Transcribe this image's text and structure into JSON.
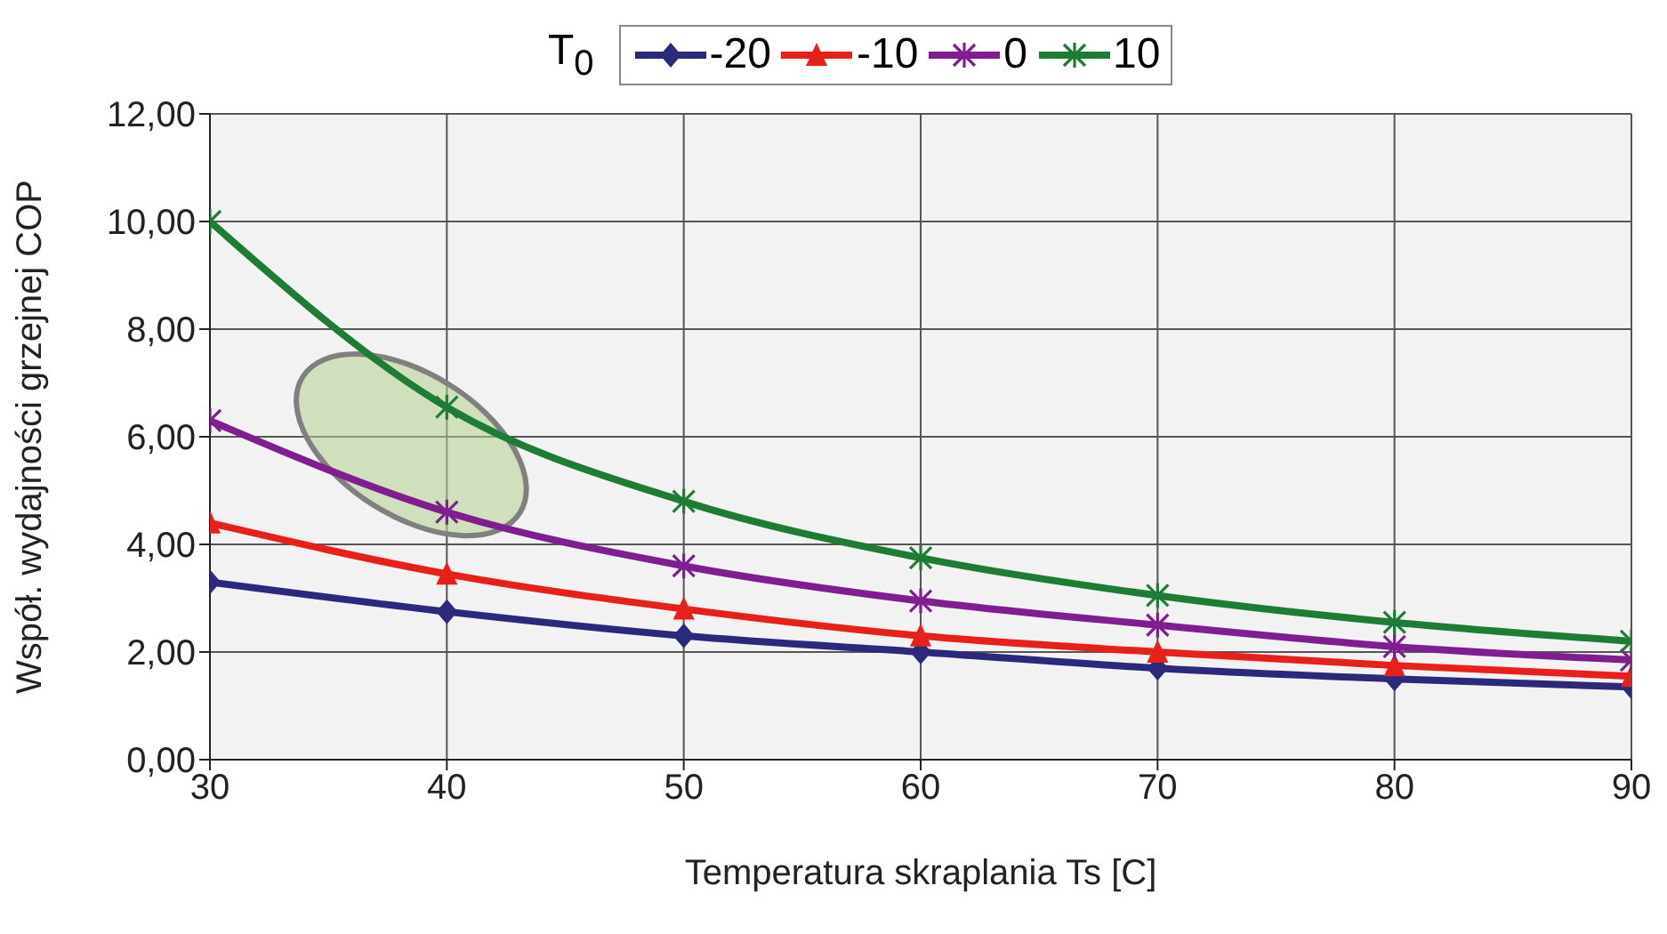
{
  "chart_data": {
    "type": "line",
    "xlabel": "Temperatura skraplania Ts [C]",
    "ylabel": "Współ. wydajności grzejnej COP",
    "legend_title": "T$_{0}$",
    "legend": "top",
    "grid": true,
    "x": [
      30,
      40,
      50,
      60,
      70,
      80,
      90
    ],
    "xlim": [
      30,
      90
    ],
    "xticks": [
      30,
      40,
      50,
      60,
      70,
      80,
      90
    ],
    "ylim": [
      0,
      12
    ],
    "yticks": [
      {
        "value": 0,
        "label": "0,00"
      },
      {
        "value": 2,
        "label": "2,00"
      },
      {
        "value": 4,
        "label": "4,00"
      },
      {
        "value": 6,
        "label": "6,00"
      },
      {
        "value": 8,
        "label": "8,00"
      },
      {
        "value": 10,
        "label": "10,00"
      },
      {
        "value": 12,
        "label": "12,00"
      }
    ],
    "series": [
      {
        "name": "-20",
        "color": "#2b2a7a",
        "marker": "diamond",
        "values": [
          3.3,
          2.75,
          2.3,
          2.0,
          1.7,
          1.5,
          1.35
        ]
      },
      {
        "name": "-10",
        "color": "#e8201c",
        "marker": "triangle",
        "values": [
          4.4,
          3.45,
          2.8,
          2.3,
          2.0,
          1.75,
          1.55
        ]
      },
      {
        "name": "0",
        "color": "#7f1f8f",
        "marker": "cross",
        "values": [
          6.3,
          4.6,
          3.6,
          2.95,
          2.5,
          2.1,
          1.85
        ]
      },
      {
        "name": "10",
        "color": "#1e7c35",
        "marker": "cross",
        "values": [
          10.0,
          6.55,
          4.8,
          3.75,
          3.05,
          2.55,
          2.2
        ]
      }
    ]
  }
}
